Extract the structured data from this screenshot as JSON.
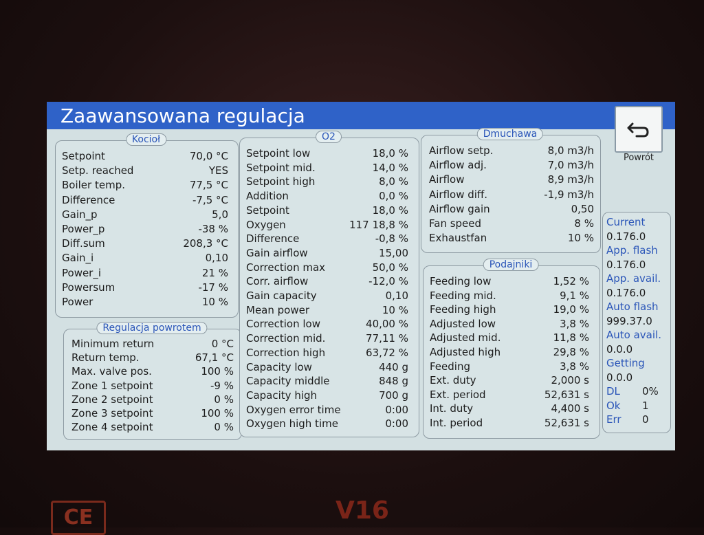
{
  "header": {
    "title": "Zaawansowana regulacja",
    "back": "Powrót"
  },
  "panels": [
    {
      "title": "Kocioł",
      "rows": [
        [
          "Setpoint",
          "70,0 °C"
        ],
        [
          "Setp. reached",
          "YES"
        ],
        [
          "Boiler temp.",
          "77,5 °C"
        ],
        [
          "Difference",
          "-7,5 °C"
        ],
        [
          "Gain_p",
          "5,0"
        ],
        [
          "Power_p",
          "-38 %"
        ],
        [
          "Diff.sum",
          "208,3 °C"
        ],
        [
          "Gain_i",
          "0,10"
        ],
        [
          "Power_i",
          "21 %"
        ],
        [
          "Powersum",
          "-17 %"
        ],
        [
          "Power",
          "10 %"
        ]
      ]
    },
    {
      "title": "Regulacja powrotem",
      "rows": [
        [
          "Minimum return",
          "0 °C"
        ],
        [
          "Return temp.",
          "67,1 °C"
        ],
        [
          "Max. valve pos.",
          "100 %"
        ],
        [
          "Zone 1 setpoint",
          "-9 %"
        ],
        [
          "Zone 2 setpoint",
          "0 %"
        ],
        [
          "Zone 3 setpoint",
          "100 %"
        ],
        [
          "Zone 4 setpoint",
          "0 %"
        ]
      ]
    },
    {
      "title": "O2",
      "rows": [
        [
          "Setpoint low",
          "18,0 %"
        ],
        [
          "Setpoint mid.",
          "14,0 %"
        ],
        [
          "Setpoint high",
          "8,0 %"
        ],
        [
          "Addition",
          "0,0 %"
        ],
        [
          "Setpoint",
          "18,0 %"
        ],
        [
          "Oxygen",
          "18,8 %",
          "117"
        ],
        [
          "Difference",
          "-0,8 %"
        ],
        [
          "Gain airflow",
          "15,00"
        ],
        [
          "Correction max",
          "50,0 %"
        ],
        [
          "Corr. airflow",
          "-12,0 %"
        ],
        [
          "Gain capacity",
          "0,10"
        ],
        [
          "Mean power",
          "10 %"
        ],
        [
          "Correction low",
          "40,00 %"
        ],
        [
          "Correction mid.",
          "77,11 %"
        ],
        [
          "Correction high",
          "63,72 %"
        ],
        [
          "Capacity low",
          "440 g"
        ],
        [
          "Capacity middle",
          "848 g"
        ],
        [
          "Capacity high",
          "700 g"
        ],
        [
          "Oxygen error time",
          "0:00"
        ],
        [
          "Oxygen high time",
          "0:00"
        ]
      ]
    },
    {
      "title": "Dmuchawa",
      "rows": [
        [
          "Airflow setp.",
          "8,0 m3/h"
        ],
        [
          "Airflow adj.",
          "7,0 m3/h"
        ],
        [
          "Airflow",
          "8,9 m3/h"
        ],
        [
          "Airflow diff.",
          "-1,9 m3/h"
        ],
        [
          "Airflow gain",
          "0,50"
        ],
        [
          "Fan speed",
          "8 %"
        ],
        [
          "Exhaustfan",
          "10 %"
        ]
      ]
    },
    {
      "title": "Podajniki",
      "rows": [
        [
          "Feeding low",
          "1,52 %"
        ],
        [
          "Feeding mid.",
          "9,1 %"
        ],
        [
          "Feeding high",
          "19,0 %"
        ],
        [
          "Adjusted low",
          "3,8 %"
        ],
        [
          "Adjusted mid.",
          "11,8 %"
        ],
        [
          "Adjusted high",
          "29,8 %"
        ],
        [
          "Feeding",
          "3,8 %"
        ],
        [
          "Ext. duty",
          "2,000 s"
        ],
        [
          "Ext. period",
          "52,631 s"
        ],
        [
          "Int. duty",
          "4,400 s"
        ],
        [
          "Int. period",
          "52,631 s"
        ]
      ]
    }
  ],
  "sidebar": [
    [
      "Current",
      "0.176.0"
    ],
    [
      "App. flash",
      "0.176.0"
    ],
    [
      "App. avail.",
      "0.176.0"
    ],
    [
      "Auto flash",
      "999.37.0"
    ],
    [
      "Auto avail.",
      "0.0.0"
    ],
    [
      "Getting",
      "0.0.0"
    ],
    [
      "DL",
      "0%"
    ],
    [
      "Ok",
      "1"
    ],
    [
      "Err",
      "0"
    ]
  ],
  "device": {
    "mark": "CE",
    "model": "V16"
  }
}
